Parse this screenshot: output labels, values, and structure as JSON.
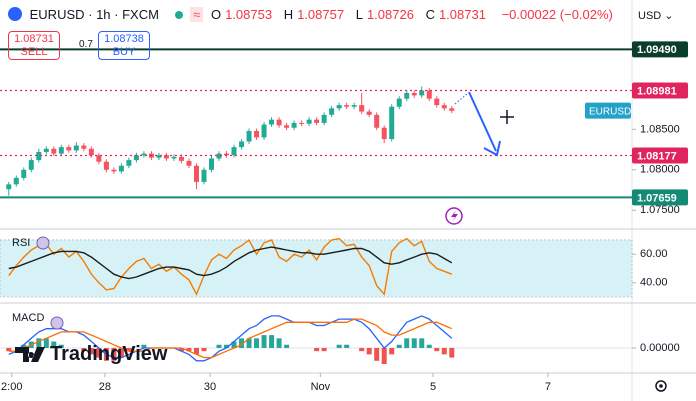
{
  "header": {
    "symbol": "EURUSD · 1h · FXCM",
    "quote": [
      {
        "label": "O",
        "value": "1.08753"
      },
      {
        "label": "H",
        "value": "1.08757"
      },
      {
        "label": "L",
        "value": "1.08726"
      },
      {
        "label": "C",
        "value": "1.08731"
      },
      {
        "label": "",
        "value": "−0.00022 (−0.02%)"
      }
    ],
    "sell": {
      "price": "1.08731",
      "label": "SELL"
    },
    "spread": "0.7",
    "buy": {
      "price": "1.08738",
      "label": "BUY"
    },
    "currency": "USD",
    "logo": "TradingView"
  },
  "chart_data": [
    {
      "type": "candlestick",
      "open": [
        1.0776,
        1.0782,
        1.079,
        1.08,
        1.0812,
        1.0822,
        1.0826,
        1.082,
        1.0828,
        1.0824,
        1.083,
        1.0826,
        1.0818,
        1.081,
        1.08,
        1.0798,
        1.0805,
        1.0812,
        1.0818,
        1.082,
        1.0815,
        1.0818,
        1.0814,
        1.0816,
        1.0811,
        1.0805,
        1.0785,
        1.08,
        1.0814,
        1.082,
        1.0818,
        1.0828,
        1.0835,
        1.0848,
        1.084,
        1.0856,
        1.0862,
        1.0855,
        1.0852,
        1.0858,
        1.0857,
        1.0862,
        1.0858,
        1.0868,
        1.0876,
        1.088,
        1.0878,
        1.088,
        1.0872,
        1.0868,
        1.0852,
        1.0838,
        1.0878,
        1.0888,
        1.0895,
        1.0892,
        1.0898,
        1.0888,
        1.088,
        1.0876
      ],
      "high": [
        1.0785,
        1.0793,
        1.0803,
        1.0815,
        1.0826,
        1.0829,
        1.0829,
        1.0831,
        1.0831,
        1.0834,
        1.0833,
        1.0829,
        1.0821,
        1.0813,
        1.0803,
        1.0808,
        1.0815,
        1.0821,
        1.0823,
        1.0823,
        1.0821,
        1.0821,
        1.0819,
        1.0819,
        1.0814,
        1.0808,
        1.0803,
        1.0817,
        1.0823,
        1.0823,
        1.0831,
        1.0838,
        1.0851,
        1.0851,
        1.0859,
        1.0865,
        1.0865,
        1.0858,
        1.0861,
        1.0861,
        1.0865,
        1.0865,
        1.0871,
        1.0879,
        1.0883,
        1.0883,
        1.0883,
        1.0895,
        1.0875,
        1.0871,
        1.0855,
        1.0881,
        1.0891,
        1.0898,
        1.0898,
        1.0903,
        1.0901,
        1.0891,
        1.0883,
        1.0879
      ],
      "low": [
        1.0768,
        1.0779,
        1.0787,
        1.0797,
        1.0809,
        1.0819,
        1.0817,
        1.0817,
        1.0821,
        1.0821,
        1.0823,
        1.0815,
        1.0807,
        1.0797,
        1.0795,
        1.0795,
        1.0802,
        1.0809,
        1.0815,
        1.0812,
        1.0812,
        1.0811,
        1.0811,
        1.0808,
        1.0802,
        1.0776,
        1.0782,
        1.0797,
        1.0811,
        1.0815,
        1.0815,
        1.0825,
        1.0832,
        1.0837,
        1.0837,
        1.0853,
        1.0852,
        1.0849,
        1.0849,
        1.0854,
        1.0854,
        1.0855,
        1.0855,
        1.0865,
        1.0873,
        1.0875,
        1.0875,
        1.0869,
        1.0865,
        1.0849,
        1.0833,
        1.0835,
        1.0875,
        1.0885,
        1.0889,
        1.0889,
        1.0885,
        1.0877,
        1.0873,
        1.087
      ],
      "close": [
        1.0782,
        1.079,
        1.08,
        1.0812,
        1.0822,
        1.0826,
        1.082,
        1.0828,
        1.0824,
        1.083,
        1.0826,
        1.0818,
        1.081,
        1.08,
        1.0798,
        1.0805,
        1.0812,
        1.0818,
        1.082,
        1.0815,
        1.0818,
        1.0814,
        1.0816,
        1.0811,
        1.0805,
        1.0785,
        1.08,
        1.0814,
        1.082,
        1.0818,
        1.0828,
        1.0835,
        1.0848,
        1.084,
        1.0856,
        1.0862,
        1.0855,
        1.0852,
        1.0858,
        1.0857,
        1.0862,
        1.0858,
        1.0868,
        1.0876,
        1.088,
        1.0878,
        1.088,
        1.0872,
        1.0868,
        1.0852,
        1.0838,
        1.0878,
        1.0888,
        1.0895,
        1.0892,
        1.0898,
        1.0888,
        1.088,
        1.0876,
        1.0873
      ],
      "up_color": "#22ab94",
      "down_color": "#f7525f",
      "xlim": [
        -0.5,
        83
      ],
      "xticks": [
        {
          "value": 0.4,
          "label": "2:00"
        },
        {
          "value": 12.8,
          "label": "28"
        },
        {
          "value": 26.8,
          "label": "30"
        },
        {
          "value": 41.5,
          "label": "Nov"
        },
        {
          "value": 56.5,
          "label": "5"
        },
        {
          "value": 71.8,
          "label": "7"
        }
      ],
      "ylim": [
        1.0728,
        1.101
      ],
      "yticks": [
        {
          "value": 1.075,
          "label": "1.07500"
        },
        {
          "value": 1.08,
          "label": "1.08000"
        },
        {
          "value": 1.085,
          "label": "1.08500"
        }
      ],
      "levels": [
        {
          "value": 1.0949,
          "label": "1.09490",
          "color": "#0b3d2e",
          "style": "solid"
        },
        {
          "value": 1.08981,
          "label": "1.08981",
          "color": "#e0245e",
          "style": "dotted"
        },
        {
          "value": 1.08177,
          "label": "1.08177",
          "color": "#e0245e",
          "style": "dotted"
        },
        {
          "value": 1.07659,
          "label": "1.07659",
          "color": "#138a74",
          "style": "solid"
        }
      ],
      "price_label": {
        "text": "EURUSD",
        "value": 1.08731,
        "color": "#22a2c8"
      }
    },
    {
      "type": "line",
      "title": "RSI",
      "series": [
        {
          "color": "#f57c00",
          "values": [
            45,
            52,
            58,
            63,
            66,
            67,
            60,
            64,
            58,
            62,
            55,
            46,
            40,
            35,
            36,
            44,
            50,
            55,
            57,
            50,
            53,
            48,
            51,
            46,
            42,
            32,
            45,
            56,
            60,
            57,
            63,
            66,
            70,
            60,
            68,
            70,
            58,
            55,
            60,
            58,
            63,
            56,
            65,
            70,
            71,
            66,
            67,
            58,
            52,
            38,
            32,
            62,
            68,
            71,
            66,
            69,
            55,
            50,
            48,
            46
          ]
        },
        {
          "color": "#1c1c1c",
          "values": [
            50,
            51,
            53,
            55,
            57,
            59,
            61,
            62,
            62,
            62,
            61,
            58,
            54,
            50,
            46,
            44,
            43,
            44,
            46,
            48,
            50,
            51,
            51,
            50,
            49,
            46,
            45,
            46,
            48,
            51,
            55,
            58,
            61,
            63,
            64,
            65,
            64,
            63,
            62,
            61,
            61,
            60,
            60,
            61,
            62,
            63,
            64,
            64,
            62,
            58,
            54,
            53,
            54,
            56,
            58,
            60,
            61,
            60,
            57,
            54
          ]
        }
      ],
      "band": [
        30,
        70
      ],
      "band_color": "#d6f2f7",
      "ylim": [
        26.5,
        77
      ],
      "yticks": [
        {
          "value": 60,
          "label": "60.00"
        },
        {
          "value": 40,
          "label": "40.00"
        }
      ]
    },
    {
      "type": "combo",
      "title": "MACD",
      "series": [
        {
          "kind": "bar",
          "color": "#26a69a",
          "negative_color": "#ef5350",
          "values": [
            -0.0001,
            0,
            0.0001,
            0.0002,
            0.0003,
            0.0003,
            0.0002,
            0.0001,
            0,
            0,
            -0.0001,
            -0.0002,
            -0.0003,
            -0.0004,
            -0.0004,
            -0.0003,
            -0.0001,
            0,
            0.0001,
            0,
            0,
            0,
            0,
            -0.0001,
            -0.0001,
            -0.0002,
            -0.0001,
            0,
            0.0001,
            0.0001,
            0.0002,
            0.0003,
            0.0003,
            0.0003,
            0.0004,
            0.0004,
            0.0003,
            0.0001,
            0,
            0,
            0,
            -0.0001,
            -0.0001,
            0,
            0.0001,
            0.0001,
            0,
            -0.0001,
            -0.0002,
            -0.0004,
            -0.0005,
            -0.0002,
            0.0001,
            0.0003,
            0.0003,
            0.0003,
            0.0001,
            -0.0001,
            -0.0002,
            -0.0003
          ]
        },
        {
          "kind": "line",
          "color": "#2962ff",
          "values": [
            -0.0002,
            -0.0001,
            0.0001,
            0.0003,
            0.0005,
            0.0006,
            0.0006,
            0.0006,
            0.0005,
            0.0005,
            0.0004,
            0.0002,
            0,
            -0.0002,
            -0.0003,
            -0.0003,
            -0.0002,
            -0.0001,
            0,
            0,
            0,
            0,
            0,
            -0.0001,
            -0.0002,
            -0.0004,
            -0.0004,
            -0.0003,
            -0.0001,
            0,
            0.0002,
            0.0004,
            0.0006,
            0.0007,
            0.0009,
            0.001,
            0.001,
            0.0009,
            0.0008,
            0.0008,
            0.0008,
            0.0007,
            0.0007,
            0.0008,
            0.0009,
            0.0009,
            0.0009,
            0.0008,
            0.0006,
            0.0003,
            0,
            0.0002,
            0.0005,
            0.0008,
            0.0009,
            0.001,
            0.0009,
            0.0007,
            0.0005,
            0.0003
          ]
        },
        {
          "kind": "line",
          "color": "#ff6d00",
          "values": [
            -0.0001,
            -0.0001,
            0,
            0.0001,
            0.0002,
            0.0003,
            0.0004,
            0.0005,
            0.0005,
            0.0005,
            0.0005,
            0.0004,
            0.0003,
            0.0002,
            0.0001,
            0,
            -0.0001,
            -0.0001,
            -0.0001,
            0,
            0,
            0,
            0,
            0,
            -0.0001,
            -0.0002,
            -0.0003,
            -0.0003,
            -0.0002,
            -0.0001,
            0,
            0.0001,
            0.0003,
            0.0004,
            0.0005,
            0.0006,
            0.0007,
            0.0008,
            0.0008,
            0.0008,
            0.0008,
            0.0008,
            0.0008,
            0.0008,
            0.0008,
            0.0008,
            0.0009,
            0.0009,
            0.0008,
            0.0007,
            0.0005,
            0.0004,
            0.0004,
            0.0005,
            0.0006,
            0.0007,
            0.0008,
            0.0008,
            0.0007,
            0.0006
          ]
        }
      ],
      "ylim": [
        -0.00075,
        0.00134
      ],
      "yticks": [
        {
          "value": 0,
          "label": "0.00000"
        }
      ]
    }
  ]
}
